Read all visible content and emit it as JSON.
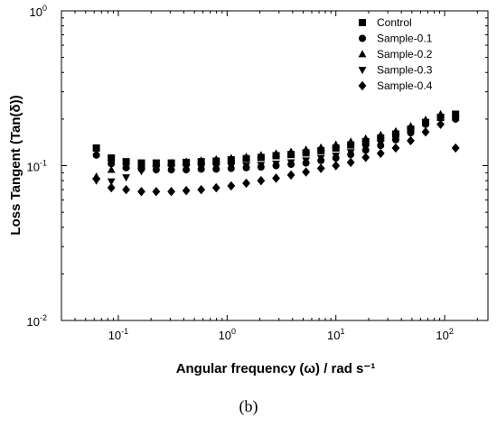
{
  "chart_data": {
    "type": "scatter",
    "xlabel": "Angular frequency (ω) / rad s⁻¹",
    "ylabel": "Loss Tangent (Tan(δ))",
    "xscale": "log",
    "yscale": "log",
    "xlim": [
      0.03,
      250
    ],
    "ylim": [
      0.01,
      1
    ],
    "xticks": [
      0.1,
      1,
      10,
      100
    ],
    "yticks": [
      0.01,
      0.1,
      1
    ],
    "legend_position": "top-right",
    "x": [
      0.0628,
      0.0862,
      0.118,
      0.163,
      0.223,
      0.307,
      0.421,
      0.578,
      0.794,
      1.09,
      1.5,
      2.05,
      2.82,
      3.87,
      5.31,
      7.29,
      10.0,
      13.7,
      18.8,
      25.8,
      35.5,
      48.7,
      66.8,
      91.7,
      126
    ],
    "series": [
      {
        "name": "Control",
        "marker": "square",
        "values": [
          0.13,
          0.112,
          0.106,
          0.104,
          0.104,
          0.104,
          0.105,
          0.106,
          0.107,
          0.109,
          0.111,
          0.113,
          0.116,
          0.118,
          0.121,
          0.125,
          0.13,
          0.136,
          0.143,
          0.151,
          0.16,
          0.172,
          0.19,
          0.205,
          0.215
        ]
      },
      {
        "name": "Sample-0.1",
        "marker": "circle",
        "values": [
          0.117,
          0.103,
          0.097,
          0.095,
          0.094,
          0.094,
          0.094,
          0.095,
          0.095,
          0.096,
          0.097,
          0.098,
          0.1,
          0.102,
          0.104,
          0.108,
          0.112,
          0.118,
          0.126,
          0.135,
          0.147,
          0.163,
          0.185,
          0.205,
          0.2
        ]
      },
      {
        "name": "Sample-0.2",
        "marker": "triangle-up",
        "values": [
          0.085,
          0.094,
          0.1,
          0.101,
          0.102,
          0.104,
          0.106,
          0.108,
          0.11,
          0.112,
          0.114,
          0.117,
          0.12,
          0.123,
          0.127,
          0.131,
          0.137,
          0.143,
          0.15,
          0.158,
          0.167,
          0.18,
          0.198,
          0.215,
          0.205
        ]
      },
      {
        "name": "Sample-0.3",
        "marker": "triangle-down",
        "values": [
          0.08,
          0.079,
          0.084,
          0.092,
          0.096,
          0.097,
          0.097,
          0.097,
          0.098,
          0.099,
          0.1,
          0.101,
          0.103,
          0.105,
          0.108,
          0.112,
          0.116,
          0.122,
          0.13,
          0.14,
          0.152,
          0.168,
          0.19,
          0.205,
          0.2
        ]
      },
      {
        "name": "Sample-0.4",
        "marker": "diamond",
        "values": [
          0.082,
          0.072,
          0.07,
          0.068,
          0.068,
          0.068,
          0.069,
          0.07,
          0.072,
          0.074,
          0.077,
          0.08,
          0.083,
          0.087,
          0.091,
          0.096,
          0.1,
          0.105,
          0.113,
          0.12,
          0.13,
          0.145,
          0.165,
          0.185,
          0.13
        ]
      }
    ]
  },
  "caption": "(b)"
}
